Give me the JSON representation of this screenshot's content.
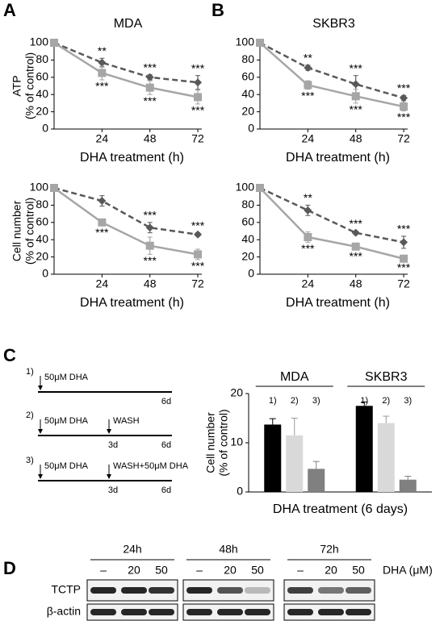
{
  "panels": [
    "A",
    "B",
    "C",
    "D"
  ],
  "chart_data": [
    {
      "type": "line",
      "title": "MDA",
      "xlabel": "DHA treatment (h)",
      "ylabel": [
        "ATP",
        "(% of control)"
      ],
      "x": [
        0,
        24,
        48,
        72
      ],
      "xlim": [
        0,
        74
      ],
      "xticks": [
        24,
        48,
        72
      ],
      "ylim": [
        0,
        100
      ],
      "yticks": [
        0,
        20,
        40,
        60,
        80,
        100
      ],
      "series": [
        {
          "color": "#595959",
          "linestyle": "dashed",
          "marker": "diamond",
          "values": [
            100,
            77,
            60,
            54
          ],
          "errors": [
            0,
            5,
            3,
            8
          ],
          "annotations": [
            null,
            "**",
            "***",
            "***"
          ]
        },
        {
          "color": "#a6a6a6",
          "linestyle": "solid",
          "marker": "square",
          "values": [
            100,
            65,
            48,
            37
          ],
          "errors": [
            0,
            8,
            8,
            8
          ],
          "annotations": [
            null,
            "***",
            "***",
            "***"
          ]
        }
      ]
    },
    {
      "type": "line",
      "title": "SKBR3",
      "xlabel": "DHA treatment (h)",
      "x": [
        0,
        24,
        48,
        72
      ],
      "xlim": [
        0,
        74
      ],
      "xticks": [
        24,
        48,
        72
      ],
      "ylim": [
        0,
        100
      ],
      "yticks": [
        0,
        20,
        40,
        60,
        80,
        100
      ],
      "series": [
        {
          "color": "#595959",
          "linestyle": "dashed",
          "marker": "diamond",
          "values": [
            100,
            71,
            52,
            36
          ],
          "errors": [
            0,
            3,
            10,
            3
          ],
          "annotations": [
            null,
            "**",
            "***",
            "***"
          ]
        },
        {
          "color": "#a6a6a6",
          "linestyle": "solid",
          "marker": "square",
          "values": [
            100,
            51,
            38,
            26
          ],
          "errors": [
            0,
            5,
            8,
            5
          ],
          "annotations": [
            null,
            "***",
            "***",
            "***"
          ]
        }
      ]
    },
    {
      "type": "line",
      "xlabel": "DHA treatment (h)",
      "ylabel": [
        "Cell number",
        "(% of control)"
      ],
      "x": [
        0,
        24,
        48,
        72
      ],
      "xlim": [
        0,
        74
      ],
      "xticks": [
        24,
        48,
        72
      ],
      "ylim": [
        0,
        100
      ],
      "yticks": [
        0,
        20,
        40,
        60,
        80,
        100
      ],
      "series": [
        {
          "color": "#595959",
          "linestyle": "dashed",
          "marker": "diamond",
          "values": [
            100,
            85,
            54,
            46
          ],
          "errors": [
            0,
            6,
            6,
            2
          ],
          "annotations": [
            null,
            null,
            "***",
            "***"
          ]
        },
        {
          "color": "#a6a6a6",
          "linestyle": "solid",
          "marker": "square",
          "values": [
            100,
            60,
            33,
            23
          ],
          "errors": [
            0,
            4,
            10,
            6
          ],
          "annotations": [
            null,
            "***",
            "***",
            "***"
          ]
        }
      ]
    },
    {
      "type": "line",
      "xlabel": "DHA treatment (h)",
      "x": [
        0,
        24,
        48,
        72
      ],
      "xlim": [
        0,
        74
      ],
      "xticks": [
        24,
        48,
        72
      ],
      "ylim": [
        0,
        100
      ],
      "yticks": [
        0,
        20,
        40,
        60,
        80,
        100
      ],
      "series": [
        {
          "color": "#595959",
          "linestyle": "dashed",
          "marker": "diamond",
          "values": [
            100,
            74,
            48,
            37
          ],
          "errors": [
            0,
            6,
            2,
            7
          ],
          "annotations": [
            null,
            "**",
            "***",
            "***"
          ]
        },
        {
          "color": "#a6a6a6",
          "linestyle": "solid",
          "marker": "square",
          "values": [
            100,
            43,
            32,
            18
          ],
          "errors": [
            0,
            6,
            4,
            3
          ],
          "annotations": [
            null,
            "***",
            "***",
            "***"
          ]
        }
      ]
    },
    {
      "type": "bar",
      "xlabel": "DHA treatment (6 days)",
      "ylabel": [
        "Cell number",
        "(% of control)"
      ],
      "groups": [
        "MDA",
        "SKBR3"
      ],
      "ylim": [
        0,
        20
      ],
      "yticks": [
        0,
        10,
        20
      ],
      "series": [
        {
          "name": "1)",
          "color": "#000000",
          "values": [
            13.7,
            17.5
          ],
          "errors": [
            1.2,
            0.8
          ]
        },
        {
          "name": "2)",
          "color": "#d9d9d9",
          "values": [
            11.5,
            14
          ],
          "errors": [
            3.5,
            1.4
          ]
        },
        {
          "name": "3)",
          "color": "#808080",
          "values": [
            4.7,
            2.5
          ],
          "errors": [
            1.5,
            0.7
          ]
        }
      ]
    }
  ],
  "protocol": [
    {
      "step": "1)",
      "start": "50μM DHA",
      "end": "6d"
    },
    {
      "step": "2)",
      "start": "50μM DHA",
      "mid": "WASH",
      "mid_day": "3d",
      "end": "6d"
    },
    {
      "step": "3)",
      "start": "50μM DHA",
      "mid": "WASH+50μM DHA",
      "mid_day": "3d",
      "end": "6d"
    }
  ],
  "blot": {
    "times": [
      "24h",
      "48h",
      "72h"
    ],
    "doses": [
      "–",
      "20",
      "50"
    ],
    "dose_unit": "DHA (μM)",
    "proteins": [
      "TCTP",
      "β-actin"
    ]
  }
}
